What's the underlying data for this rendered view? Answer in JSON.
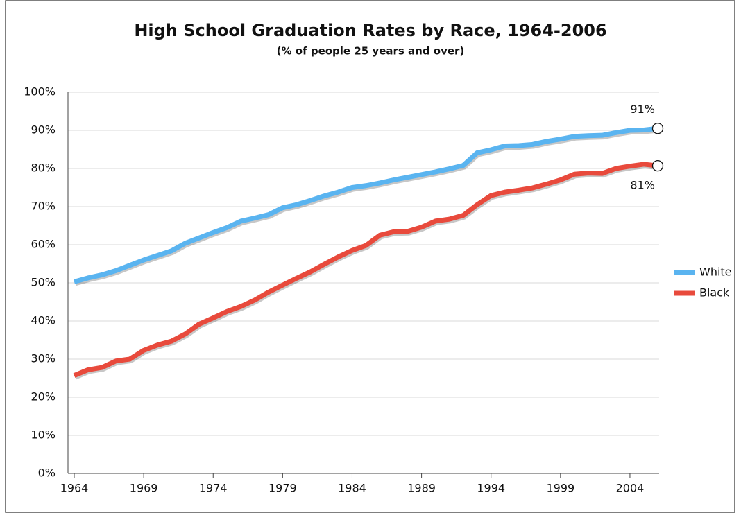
{
  "chart_data": {
    "type": "line",
    "title": "High School Graduation Rates by Race, 1964-2006",
    "subtitle": "(% of people 25 years and over)",
    "x": [
      1964,
      1965,
      1966,
      1967,
      1968,
      1969,
      1970,
      1971,
      1972,
      1973,
      1974,
      1975,
      1976,
      1977,
      1978,
      1979,
      1980,
      1981,
      1982,
      1983,
      1984,
      1985,
      1986,
      1987,
      1988,
      1989,
      1990,
      1991,
      1992,
      1993,
      1994,
      1995,
      1996,
      1997,
      1998,
      1999,
      2000,
      2001,
      2002,
      2003,
      2004,
      2005,
      2006
    ],
    "series": [
      {
        "name": "White",
        "color": "#5ab4f0",
        "values": [
          50.3,
          51.3,
          52.1,
          53.2,
          54.6,
          56.0,
          57.2,
          58.4,
          60.4,
          61.8,
          63.2,
          64.5,
          66.2,
          67.0,
          67.9,
          69.7,
          70.5,
          71.6,
          72.8,
          73.8,
          75.0,
          75.5,
          76.2,
          77.0,
          77.7,
          78.4,
          79.1,
          79.9,
          80.8,
          84.1,
          84.9,
          85.9,
          86.0,
          86.3,
          87.1,
          87.7,
          88.4,
          88.6,
          88.7,
          89.4,
          90.0,
          90.1,
          90.5
        ],
        "value_labels": [
          null,
          null,
          null,
          null,
          null,
          null,
          null,
          null,
          null,
          null,
          null,
          null,
          null,
          null,
          null,
          null,
          null,
          null,
          null,
          null,
          null,
          null,
          null,
          null,
          null,
          null,
          null,
          null,
          null,
          null,
          null,
          null,
          null,
          null,
          null,
          null,
          null,
          null,
          null,
          null,
          null,
          null,
          "91%"
        ]
      },
      {
        "name": "Black",
        "color": "#e84a3c",
        "values": [
          25.7,
          27.2,
          27.8,
          29.5,
          30.0,
          32.3,
          33.7,
          34.7,
          36.6,
          39.2,
          40.8,
          42.5,
          43.8,
          45.5,
          47.6,
          49.4,
          51.2,
          52.9,
          54.9,
          56.8,
          58.5,
          59.8,
          62.5,
          63.4,
          63.5,
          64.6,
          66.2,
          66.7,
          67.7,
          70.5,
          72.9,
          73.8,
          74.3,
          74.9,
          75.9,
          77.0,
          78.5,
          78.8,
          78.7,
          80.0,
          80.6,
          81.1,
          80.7
        ],
        "value_labels": [
          null,
          null,
          null,
          null,
          null,
          null,
          null,
          null,
          null,
          null,
          null,
          null,
          null,
          null,
          null,
          null,
          null,
          null,
          null,
          null,
          null,
          null,
          null,
          null,
          null,
          null,
          null,
          null,
          null,
          null,
          null,
          null,
          null,
          null,
          null,
          null,
          null,
          null,
          null,
          null,
          null,
          null,
          "81%"
        ]
      }
    ],
    "xlim": [
      1963.55,
      2006.1
    ],
    "xticks": [
      1964,
      1969,
      1974,
      1979,
      1984,
      1989,
      1994,
      1999,
      2004
    ],
    "ylim": [
      0,
      100
    ],
    "yticks": [
      {
        "value": 0,
        "label": "0%"
      },
      {
        "value": 10,
        "label": "10%"
      },
      {
        "value": 20,
        "label": "20%"
      },
      {
        "value": 30,
        "label": "30%"
      },
      {
        "value": 40,
        "label": "40%"
      },
      {
        "value": 50,
        "label": "50%"
      },
      {
        "value": 60,
        "label": "60%"
      },
      {
        "value": 70,
        "label": "70%"
      },
      {
        "value": 80,
        "label": "80%"
      },
      {
        "value": 90,
        "label": "90%"
      },
      {
        "value": 100,
        "label": "100%"
      }
    ],
    "grid": true,
    "legend": "right"
  }
}
